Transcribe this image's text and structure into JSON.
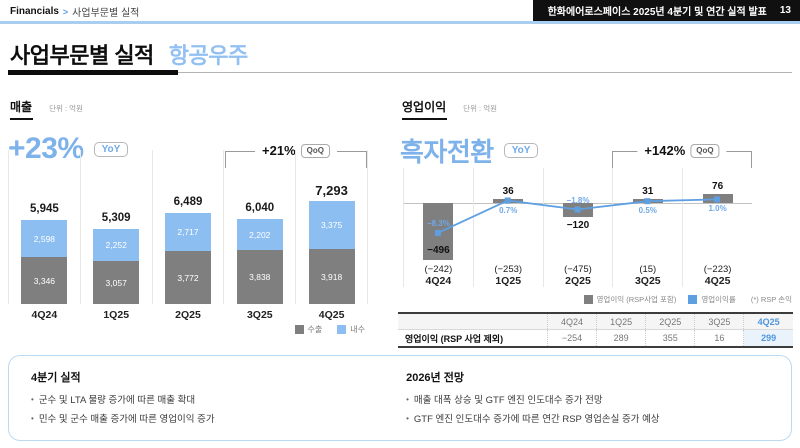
{
  "header": {
    "breadcrumb": {
      "root": "Financials",
      "separator": ">",
      "current": "사업부문별 실적"
    },
    "deck_title": "한화에어로스페이스 2025년 4분기 및 연간 실적 발표",
    "page_number": "13"
  },
  "title": {
    "main": "사업부문별 실적",
    "sub": "항공우주"
  },
  "colors": {
    "accent_blue": "#7db2ea",
    "bar_blue": "#8cbef2",
    "bar_gray": "#7f7f7f",
    "line_blue": "#5e9fe2",
    "header_bar": "#101010",
    "rule_blue": "#a9cdf0",
    "table_highlight_text": "#4e97dc",
    "table_highlight_bg": "#eaf3fc",
    "notes_border": "#badaf4"
  },
  "chart_data": [
    {
      "id": "revenue",
      "type": "bar",
      "stacked": true,
      "title": "매출",
      "unit": "단위 : 억원",
      "categories": [
        "4Q24",
        "1Q25",
        "2Q25",
        "3Q25",
        "4Q25"
      ],
      "series": [
        {
          "name": "수출",
          "color": "#7f7f7f",
          "values": [
            3346,
            3057,
            3772,
            3838,
            3918
          ]
        },
        {
          "name": "내수",
          "color": "#8cbef2",
          "values": [
            2598,
            2252,
            2717,
            2202,
            3375
          ]
        }
      ],
      "totals": [
        5945,
        5309,
        6489,
        6040,
        7293
      ],
      "ylim": [
        0,
        7800
      ],
      "grid": "vertical-separators",
      "legend_position": "bottom-right",
      "annotations": {
        "yoy_label": "+23%",
        "yoy_badge": "YoY",
        "qoq_label": "+21%",
        "qoq_badge": "QoQ",
        "qoq_span": [
          "3Q25",
          "4Q25"
        ]
      }
    },
    {
      "id": "operating-profit",
      "type": "bar+line",
      "title": "영업이익",
      "unit": "단위 : 억원",
      "categories": [
        "4Q24",
        "1Q25",
        "2Q25",
        "3Q25",
        "4Q25"
      ],
      "bar_series": {
        "name": "영업이익 (RSP사업 포함)",
        "color": "#7f7f7f",
        "values": [
          -496,
          36,
          -120,
          31,
          76
        ]
      },
      "line_series": {
        "name": "영업이익률",
        "color": "#5e9fe2",
        "unit": "%",
        "values": [
          -8.3,
          0.7,
          -1.8,
          0.5,
          1.0
        ],
        "label_side": [
          "above",
          "below",
          "above",
          "below",
          "below"
        ]
      },
      "sub_values": {
        "name": "RSP 손익",
        "values": [
          -242,
          -253,
          -475,
          15,
          -223
        ]
      },
      "footnote": "(*) RSP 손익",
      "grid": "vertical-separators",
      "legend_position": "bottom-right",
      "annotations": {
        "yoy_label": "흑자전환",
        "yoy_badge": "YoY",
        "qoq_label": "+142%",
        "qoq_badge": "QoQ",
        "qoq_span": [
          "3Q25",
          "4Q25"
        ]
      }
    },
    {
      "id": "operating-profit-excl-rsp-table",
      "type": "table",
      "columns": [
        "4Q24",
        "1Q25",
        "2Q25",
        "3Q25",
        "4Q25"
      ],
      "rows": [
        {
          "label": "영업이익 (RSP 사업 제외)",
          "values": [
            -254,
            289,
            355,
            16,
            299
          ]
        }
      ],
      "highlight_column": "4Q25"
    }
  ],
  "notes": {
    "q4": {
      "title": "4분기 실적",
      "bullets": [
        "군수 및 LTA 물량 증가에 따른 매출 확대",
        "민수 및 군수 매출 증가에 따른 영업이익 증가"
      ]
    },
    "outlook": {
      "title": "2026년 전망",
      "bullets": [
        "매출 대폭 상승 및 GTF 엔진 인도대수 증가 전망",
        "GTF 엔진 인도대수 증가에 따른 연간 RSP 영업손실 증가 예상"
      ]
    }
  }
}
